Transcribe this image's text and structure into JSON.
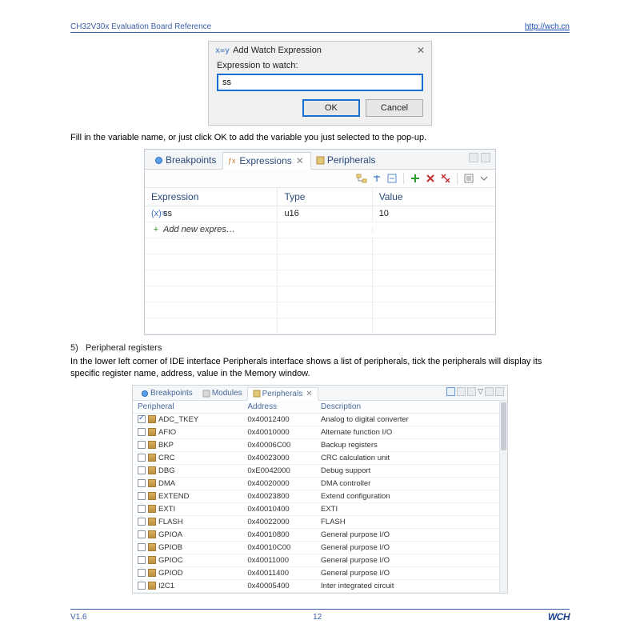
{
  "header": {
    "left": "CH32V30x Evaluation Board Reference",
    "right": "http://wch.cn"
  },
  "dialog": {
    "title": "Add Watch Expression",
    "label": "Expression to watch:",
    "value": "ss",
    "ok": "OK",
    "cancel": "Cancel"
  },
  "text1": "Fill in the variable name, or just click OK to add the variable you just selected to the pop-up.",
  "expr_panel": {
    "tabs": {
      "breakpoints": "Breakpoints",
      "expressions": "Expressions",
      "peripherals": "Peripherals"
    },
    "columns": {
      "expression": "Expression",
      "type": "Type",
      "value": "Value"
    },
    "rows": [
      {
        "icon": "(x)=",
        "icon_color": "#3a6fc0",
        "name": "ss",
        "type": "u16",
        "value": "10",
        "italic": false
      },
      {
        "icon": "+",
        "icon_color": "#2a9a2a",
        "name": "Add new expres…",
        "type": "",
        "value": "",
        "italic": true
      }
    ],
    "empty_rows": 6
  },
  "section5": {
    "num": "5)",
    "title": "Peripheral registers",
    "text": "In the lower left corner of IDE interface Peripherals interface shows a list of peripherals, tick the peripherals will display its specific register name, address, value in the Memory window."
  },
  "pp_panel": {
    "tabs": {
      "breakpoints": "Breakpoints",
      "modules": "Modules",
      "peripherals": "Peripherals"
    },
    "columns": {
      "peripheral": "Peripheral",
      "address": "Address",
      "description": "Description"
    },
    "rows": [
      {
        "checked": true,
        "name": "ADC_TKEY",
        "addr": "0x40012400",
        "desc": "Analog to digital converter"
      },
      {
        "checked": false,
        "name": "AFIO",
        "addr": "0x40010000",
        "desc": "Alternate function I/O"
      },
      {
        "checked": false,
        "name": "BKP",
        "addr": "0x40006C00",
        "desc": "Backup registers"
      },
      {
        "checked": false,
        "name": "CRC",
        "addr": "0x40023000",
        "desc": "CRC calculation unit"
      },
      {
        "checked": false,
        "name": "DBG",
        "addr": "0xE0042000",
        "desc": "Debug support"
      },
      {
        "checked": false,
        "name": "DMA",
        "addr": "0x40020000",
        "desc": "DMA controller"
      },
      {
        "checked": false,
        "name": "EXTEND",
        "addr": "0x40023800",
        "desc": "Extend configuration"
      },
      {
        "checked": false,
        "name": "EXTI",
        "addr": "0x40010400",
        "desc": "EXTI"
      },
      {
        "checked": false,
        "name": "FLASH",
        "addr": "0x40022000",
        "desc": "FLASH"
      },
      {
        "checked": false,
        "name": "GPIOA",
        "addr": "0x40010800",
        "desc": "General purpose I/O"
      },
      {
        "checked": false,
        "name": "GPIOB",
        "addr": "0x40010C00",
        "desc": "General purpose I/O"
      },
      {
        "checked": false,
        "name": "GPIOC",
        "addr": "0x40011000",
        "desc": "General purpose I/O"
      },
      {
        "checked": false,
        "name": "GPIOD",
        "addr": "0x40011400",
        "desc": "General purpose I/O"
      },
      {
        "checked": false,
        "name": "I2C1",
        "addr": "0x40005400",
        "desc": "Inter integrated circuit"
      }
    ]
  },
  "footer": {
    "version": "V1.6",
    "page": "12",
    "logo": "WCH"
  },
  "colors": {
    "accent": "#3a5fa8",
    "link": "#1a4fb5",
    "input_border": "#1a6fd4",
    "panel_border": "#bfcad4",
    "tab_text": "#2a4a7a"
  }
}
